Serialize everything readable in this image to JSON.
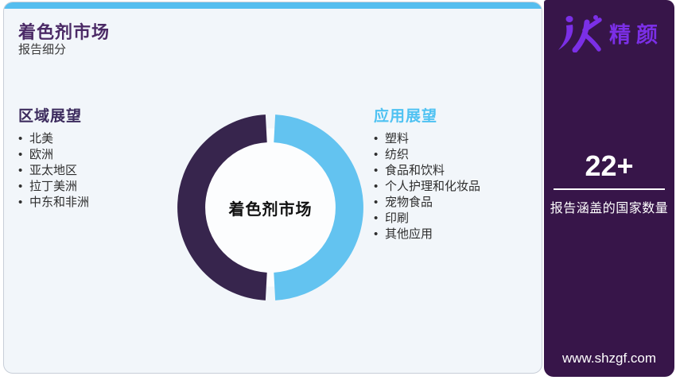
{
  "header": {
    "title": "着色剂市场",
    "subtitle": "报告细分"
  },
  "regional": {
    "heading": "区域展望",
    "items": [
      "北美",
      "欧洲",
      "亚太地区",
      "拉丁美洲",
      "中东和非洲"
    ]
  },
  "application": {
    "heading": "应用展望",
    "items": [
      "塑料",
      "纺织",
      "食品和饮料",
      "个人护理和化妆品",
      "宠物食品",
      "印刷",
      "其他应用"
    ]
  },
  "chart_data": {
    "type": "pie",
    "subtype": "donut",
    "title": "着色剂市场",
    "center_label": "着色剂市场",
    "segments": [
      {
        "label": "区域展望",
        "value": 50,
        "color": "#37254D"
      },
      {
        "label": "应用展望",
        "value": 50,
        "color": "#63C3F0"
      }
    ],
    "legend_position": "none",
    "hole_color": "#FCFDFE"
  },
  "sidebar": {
    "logo_text": "精颜",
    "stat_value": "22+",
    "stat_label": "报告涵盖的国家数量",
    "website": "www.shzgf.com"
  },
  "colors": {
    "top_strip_blue": "#55BEEF",
    "title_purple": "#4B2A66",
    "regional_heading_purple": "#3D2C5E",
    "application_heading_blue": "#4FC2F2",
    "donut_dark_purple": "#37254D",
    "donut_light_blue": "#63C3F0",
    "sidebar_background": "#371549",
    "logo_purple": "#7B2FE6",
    "card_background": "#F2F6FA"
  }
}
